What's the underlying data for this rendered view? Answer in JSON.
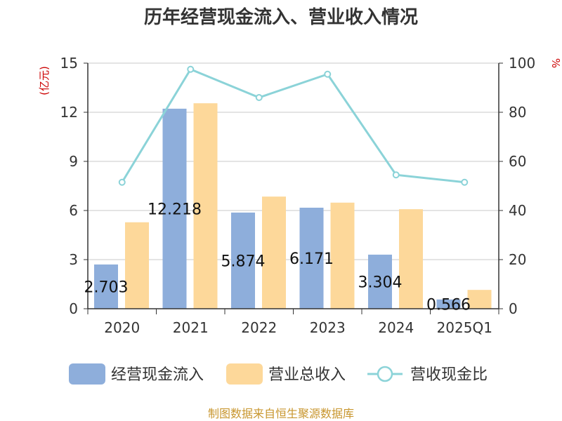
{
  "chart_data": {
    "type": "bar",
    "title": "历年经营现金流入、营业收入情况",
    "categories": [
      "2020",
      "2021",
      "2022",
      "2023",
      "2024",
      "2025Q1"
    ],
    "series": [
      {
        "name": "经营现金流入",
        "type": "bar",
        "axis": "left",
        "values": [
          2.703,
          12.218,
          5.874,
          6.171,
          3.304,
          0.566
        ],
        "labels": [
          "2.703",
          "12.218",
          "5.874",
          "6.171",
          "3.304",
          "0.566"
        ]
      },
      {
        "name": "营业总收入",
        "type": "bar",
        "axis": "left",
        "values": [
          5.28,
          12.55,
          6.85,
          6.48,
          6.08,
          1.15
        ]
      },
      {
        "name": "营收现金比",
        "type": "line",
        "axis": "right",
        "values": [
          51.5,
          97.5,
          86.0,
          95.5,
          54.5,
          51.5
        ]
      }
    ],
    "y_left": {
      "label": "(亿元)",
      "ylim": [
        0,
        15
      ],
      "ticks": [
        "0",
        "3",
        "6",
        "9",
        "12",
        "15"
      ]
    },
    "y_right": {
      "label": "%",
      "ylim": [
        0,
        100
      ],
      "ticks": [
        "0",
        "20",
        "40",
        "60",
        "80",
        "100"
      ]
    },
    "grid": true,
    "legend_position": "bottom",
    "colors": {
      "cash_inflow": "#8eaedb",
      "revenue": "#fdd89a",
      "ratio_line": "#8bd3d8",
      "axis_label_red": "#cc0000",
      "axis": "#333333",
      "grid": "#c8c8c8",
      "footer": "#c8962e"
    }
  },
  "footer": "制图数据来自恒生聚源数据库"
}
